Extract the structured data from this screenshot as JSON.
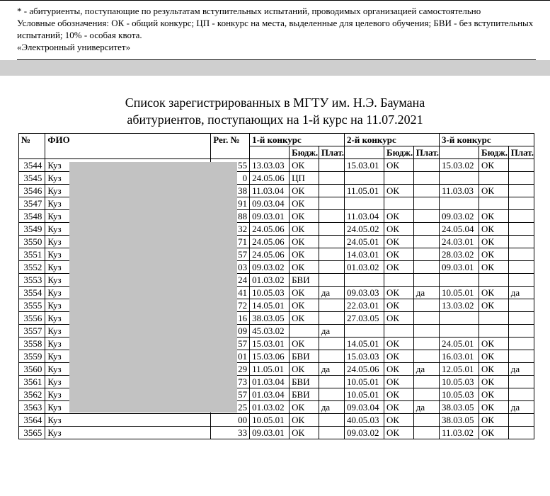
{
  "notes": {
    "line1": "* - абитуриенты, поступающие по результатам вступительных испытаний, проводимых организацией самостоятельно",
    "line2": "Условные обозначения: ОК - общий конкурс; ЦП - конкурс на места, выделенные для целевого обучения; БВИ - без вступительных испытаний; 10% - особая квота.",
    "line3": "«Электронный университет»"
  },
  "title": {
    "l1": "Список зарегистрированных в МГТУ им. Н.Э. Баумана",
    "l2": "абитуриентов, поступающих на 1-й курс на 11.07.2021"
  },
  "headers": {
    "num": "№",
    "fio": "ФИО",
    "reg": "Рег. №",
    "k1": "1-й конкурс",
    "k2": "2-й конкурс",
    "k3": "3-й конкурс",
    "budzh": "Бюдж.",
    "plat": "Плат."
  },
  "rows": [
    {
      "n": "3544",
      "fio": "Куз",
      "reg": "55",
      "k1c": "13.03.03",
      "k1s": "ОК",
      "k1p": "",
      "k2c": "15.03.01",
      "k2s": "ОК",
      "k2p": "",
      "k3c": "15.03.02",
      "k3s": "ОК",
      "k3p": ""
    },
    {
      "n": "3545",
      "fio": "Куз",
      "reg": "0",
      "k1c": "24.05.06",
      "k1s": "ЦП",
      "k1p": "",
      "k2c": "",
      "k2s": "",
      "k2p": "",
      "k3c": "",
      "k3s": "",
      "k3p": ""
    },
    {
      "n": "3546",
      "fio": "Куз",
      "reg": "38",
      "k1c": "11.03.04",
      "k1s": "ОК",
      "k1p": "",
      "k2c": "11.05.01",
      "k2s": "ОК",
      "k2p": "",
      "k3c": "11.03.03",
      "k3s": "ОК",
      "k3p": ""
    },
    {
      "n": "3547",
      "fio": "Куз",
      "reg": "91",
      "k1c": "09.03.04",
      "k1s": "ОК",
      "k1p": "",
      "k2c": "",
      "k2s": "",
      "k2p": "",
      "k3c": "",
      "k3s": "",
      "k3p": ""
    },
    {
      "n": "3548",
      "fio": "Куз",
      "reg": "88",
      "k1c": "09.03.01",
      "k1s": "ОК",
      "k1p": "",
      "k2c": "11.03.04",
      "k2s": "ОК",
      "k2p": "",
      "k3c": "09.03.02",
      "k3s": "ОК",
      "k3p": ""
    },
    {
      "n": "3549",
      "fio": "Куз",
      "reg": "32",
      "k1c": "24.05.06",
      "k1s": "ОК",
      "k1p": "",
      "k2c": "24.05.02",
      "k2s": "ОК",
      "k2p": "",
      "k3c": "24.05.04",
      "k3s": "ОК",
      "k3p": ""
    },
    {
      "n": "3550",
      "fio": "Куз",
      "reg": "71",
      "k1c": "24.05.06",
      "k1s": "ОК",
      "k1p": "",
      "k2c": "24.05.01",
      "k2s": "ОК",
      "k2p": "",
      "k3c": "24.03.01",
      "k3s": "ОК",
      "k3p": ""
    },
    {
      "n": "3551",
      "fio": "Куз",
      "reg": "57",
      "k1c": "24.05.06",
      "k1s": "ОК",
      "k1p": "",
      "k2c": "14.03.01",
      "k2s": "ОК",
      "k2p": "",
      "k3c": "28.03.02",
      "k3s": "ОК",
      "k3p": ""
    },
    {
      "n": "3552",
      "fio": "Куз",
      "reg": "03",
      "k1c": "09.03.02",
      "k1s": "ОК",
      "k1p": "",
      "k2c": "01.03.02",
      "k2s": "ОК",
      "k2p": "",
      "k3c": "09.03.01",
      "k3s": "ОК",
      "k3p": ""
    },
    {
      "n": "3553",
      "fio": "Куз",
      "reg": "24",
      "k1c": "01.03.02",
      "k1s": "БВИ",
      "k1p": "",
      "k2c": "",
      "k2s": "",
      "k2p": "",
      "k3c": "",
      "k3s": "",
      "k3p": ""
    },
    {
      "n": "3554",
      "fio": "Куз",
      "reg": "41",
      "k1c": "10.05.03",
      "k1s": "ОК",
      "k1p": "да",
      "k2c": "09.03.03",
      "k2s": "ОК",
      "k2p": "да",
      "k3c": "10.05.01",
      "k3s": "ОК",
      "k3p": "да"
    },
    {
      "n": "3555",
      "fio": "Куз",
      "reg": "72",
      "k1c": "14.05.01",
      "k1s": "ОК",
      "k1p": "",
      "k2c": "22.03.01",
      "k2s": "ОК",
      "k2p": "",
      "k3c": "13.03.02",
      "k3s": "ОК",
      "k3p": ""
    },
    {
      "n": "3556",
      "fio": "Куз",
      "reg": "16",
      "k1c": "38.03.05",
      "k1s": "ОК",
      "k1p": "",
      "k2c": "27.03.05",
      "k2s": "ОК",
      "k2p": "",
      "k3c": "",
      "k3s": "",
      "k3p": ""
    },
    {
      "n": "3557",
      "fio": "Куз",
      "reg": "09",
      "k1c": "45.03.02",
      "k1s": "",
      "k1p": "да",
      "k2c": "",
      "k2s": "",
      "k2p": "",
      "k3c": "",
      "k3s": "",
      "k3p": ""
    },
    {
      "n": "3558",
      "fio": "Куз",
      "reg": "57",
      "k1c": "15.03.01",
      "k1s": "ОК",
      "k1p": "",
      "k2c": "14.05.01",
      "k2s": "ОК",
      "k2p": "",
      "k3c": "24.05.01",
      "k3s": "ОК",
      "k3p": ""
    },
    {
      "n": "3559",
      "fio": "Куз",
      "reg": "01",
      "k1c": "15.03.06",
      "k1s": "БВИ",
      "k1p": "",
      "k2c": "15.03.03",
      "k2s": "ОК",
      "k2p": "",
      "k3c": "16.03.01",
      "k3s": "ОК",
      "k3p": ""
    },
    {
      "n": "3560",
      "fio": "Куз",
      "reg": "29",
      "k1c": "11.05.01",
      "k1s": "ОК",
      "k1p": "да",
      "k2c": "24.05.06",
      "k2s": "ОК",
      "k2p": "да",
      "k3c": "12.05.01",
      "k3s": "ОК",
      "k3p": "да"
    },
    {
      "n": "3561",
      "fio": "Куз",
      "reg": "73",
      "k1c": "01.03.04",
      "k1s": "БВИ",
      "k1p": "",
      "k2c": "10.05.01",
      "k2s": "ОК",
      "k2p": "",
      "k3c": "10.05.03",
      "k3s": "ОК",
      "k3p": ""
    },
    {
      "n": "3562",
      "fio": "Куз",
      "reg": "57",
      "k1c": "01.03.04",
      "k1s": "БВИ",
      "k1p": "",
      "k2c": "10.05.01",
      "k2s": "ОК",
      "k2p": "",
      "k3c": "10.05.03",
      "k3s": "ОК",
      "k3p": ""
    },
    {
      "n": "3563",
      "fio": "Куз",
      "reg": "25",
      "k1c": "01.03.02",
      "k1s": "ОК",
      "k1p": "да",
      "k2c": "09.03.04",
      "k2s": "ОК",
      "k2p": "да",
      "k3c": "38.03.05",
      "k3s": "ОК",
      "k3p": "да"
    },
    {
      "n": "3564",
      "fio": "Куз",
      "reg": "00",
      "k1c": "10.05.01",
      "k1s": "ОК",
      "k1p": "",
      "k2c": "40.05.03",
      "k2s": "ОК",
      "k2p": "",
      "k3c": "38.03.05",
      "k3s": "ОК",
      "k3p": ""
    },
    {
      "n": "3565",
      "fio": "Куз",
      "reg": "33",
      "k1c": "09.03.01",
      "k1s": "ОК",
      "k1p": "",
      "k2c": "09.03.02",
      "k2s": "ОК",
      "k2p": "",
      "k3c": "11.03.02",
      "k3s": "ОК",
      "k3p": ""
    }
  ],
  "style": {
    "font_family": "Times New Roman",
    "body_fontsize_pt": 10,
    "title_fontsize_pt": 14,
    "border_color": "#000000",
    "redaction_color": "#c2c2c2",
    "page_bg": "#ffffff",
    "outer_bg": "#f5f5f5"
  }
}
